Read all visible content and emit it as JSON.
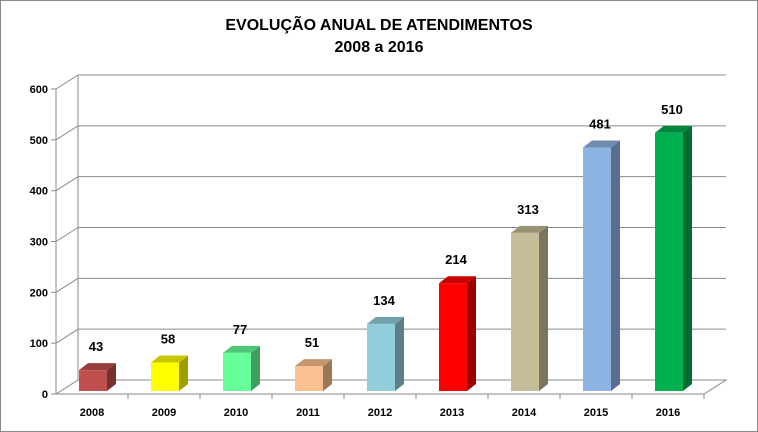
{
  "chart_data": {
    "type": "bar",
    "title": "EVOLUÇÃO ANUAL DE ATENDIMENTOS",
    "subtitle": "2008 a 2016",
    "xlabel": "",
    "ylabel": "",
    "categories": [
      "2008",
      "2009",
      "2010",
      "2011",
      "2012",
      "2013",
      "2014",
      "2015",
      "2016"
    ],
    "values": [
      43,
      58,
      77,
      51,
      134,
      214,
      313,
      481,
      510
    ],
    "ylim": [
      0,
      600
    ],
    "yticks": [
      0,
      100,
      200,
      300,
      400,
      500,
      600
    ],
    "data_labels": [
      "43",
      "58",
      "77",
      "51",
      "134",
      "214",
      "313",
      "481",
      "510"
    ],
    "colors": [
      "#c0504d",
      "#ffff00",
      "#66ff99",
      "#fac08f",
      "#92cddc",
      "#ff0000",
      "#c4bd97",
      "#8db3e2",
      "#00b050"
    ],
    "grid": true,
    "style": "3d-column"
  }
}
